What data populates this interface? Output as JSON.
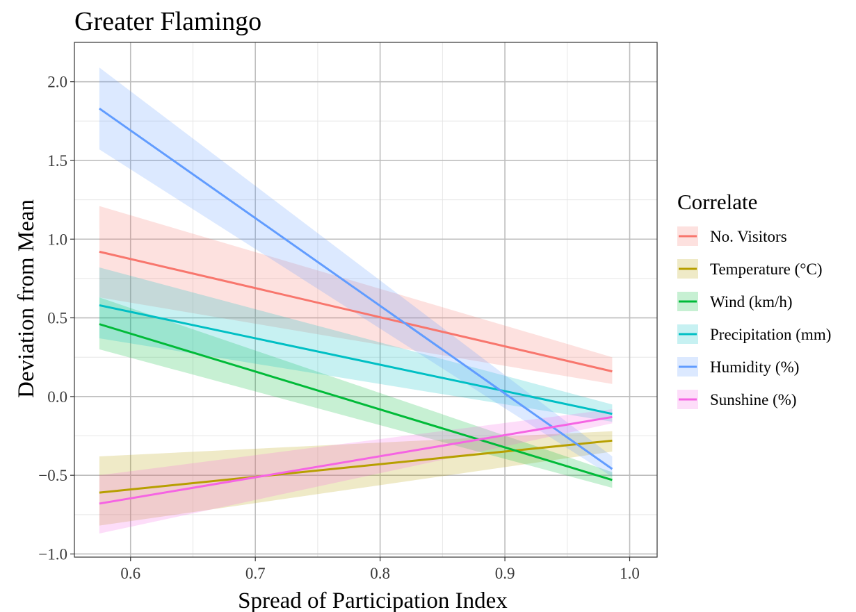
{
  "chart_data": {
    "type": "line",
    "title": "Greater Flamingo",
    "xlabel": "Spread of Participation Index",
    "ylabel": "Deviation from Mean",
    "xlim": [
      0.555,
      1.022
    ],
    "ylim": [
      -1.02,
      2.25
    ],
    "x_ticks": [
      0.6,
      0.7,
      0.8,
      0.9,
      1.0
    ],
    "x_tick_labels": [
      "0.6",
      "0.7",
      "0.8",
      "0.9",
      "1.0"
    ],
    "y_ticks": [
      -1.0,
      -0.5,
      0.0,
      0.5,
      1.0,
      1.5,
      2.0
    ],
    "y_tick_labels": [
      "−1.0",
      "−0.5",
      "0.0",
      "0.5",
      "1.0",
      "1.5",
      "2.0"
    ],
    "grid": true,
    "legend": {
      "title": "Correlate",
      "position": "right"
    },
    "series": [
      {
        "name": "No. Visitors",
        "color": "#F8766D",
        "x": [
          0.575,
          0.986
        ],
        "y": [
          0.92,
          0.16
        ],
        "lower": [
          0.63,
          0.08
        ],
        "upper": [
          1.21,
          0.25
        ]
      },
      {
        "name": "Temperature (°C)",
        "color": "#B79F00",
        "x": [
          0.575,
          0.986
        ],
        "y": [
          -0.61,
          -0.28
        ],
        "lower": [
          -0.82,
          -0.35
        ],
        "upper": [
          -0.38,
          -0.22
        ]
      },
      {
        "name": "Wind (km/h)",
        "color": "#00BA38",
        "x": [
          0.575,
          0.986
        ],
        "y": [
          0.46,
          -0.53
        ],
        "lower": [
          0.3,
          -0.58
        ],
        "upper": [
          0.63,
          -0.48
        ]
      },
      {
        "name": "Precipitation (mm)",
        "color": "#00BFC4",
        "x": [
          0.575,
          0.986
        ],
        "y": [
          0.58,
          -0.11
        ],
        "lower": [
          0.37,
          -0.16
        ],
        "upper": [
          0.82,
          -0.05
        ]
      },
      {
        "name": "Humidity (%)",
        "color": "#619CFF",
        "x": [
          0.575,
          0.986
        ],
        "y": [
          1.83,
          -0.46
        ],
        "lower": [
          1.57,
          -0.51
        ],
        "upper": [
          2.09,
          -0.38
        ]
      },
      {
        "name": "Sunshine (%)",
        "color": "#F564E3",
        "x": [
          0.575,
          0.986
        ],
        "y": [
          -0.68,
          -0.13
        ],
        "lower": [
          -0.87,
          -0.17
        ],
        "upper": [
          -0.5,
          -0.08
        ]
      }
    ]
  }
}
